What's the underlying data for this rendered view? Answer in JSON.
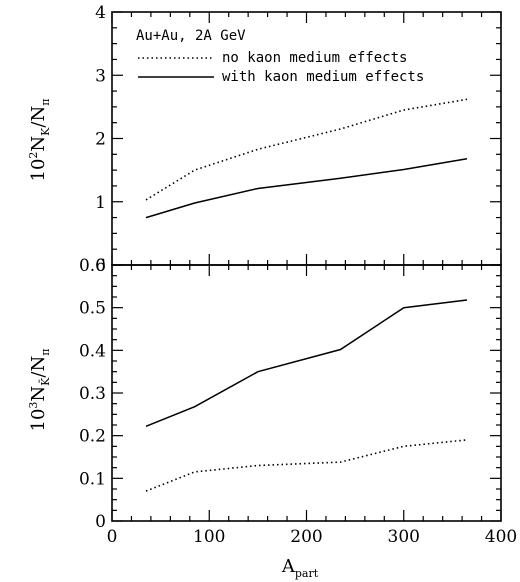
{
  "chart_data": [
    {
      "type": "line",
      "panel": "top",
      "title": "",
      "ylabel": {
        "base": "10",
        "exp": "2",
        "main": "N",
        "num_sub": "K",
        "slash": "/N",
        "den_sub": "π"
      },
      "ylim": [
        0,
        4
      ],
      "y_ticks": [
        0,
        1,
        2,
        3,
        4
      ],
      "y_tick_labels": [
        "0",
        "1",
        "2",
        "3",
        "4"
      ],
      "xlim": [
        0,
        400
      ],
      "grid": false,
      "legend_placement": "top-left",
      "legend_title": "Au+Au, 2A GeV",
      "series": [
        {
          "name": "no kaon medium effects",
          "style": "dotted",
          "x": [
            35,
            85,
            150,
            235,
            300,
            365
          ],
          "y": [
            1.03,
            1.5,
            1.83,
            2.15,
            2.45,
            2.62
          ]
        },
        {
          "name": "with kaon medium effects",
          "style": "solid",
          "x": [
            35,
            85,
            150,
            235,
            300,
            365
          ],
          "y": [
            0.75,
            0.98,
            1.21,
            1.37,
            1.51,
            1.68
          ]
        }
      ]
    },
    {
      "type": "line",
      "panel": "bottom",
      "title": "",
      "ylabel": {
        "base": "10",
        "exp": "3",
        "main": "N",
        "num_sub": "K̄",
        "slash": "/N",
        "den_sub": "π"
      },
      "xlabel": {
        "main": "A",
        "sub": "part"
      },
      "ylim": [
        0,
        0.6
      ],
      "y_ticks": [
        0,
        0.1,
        0.2,
        0.3,
        0.4,
        0.5,
        0.6
      ],
      "y_tick_labels": [
        "0",
        "0.1",
        "0.2",
        "0.3",
        "0.4",
        "0.5",
        "0.6"
      ],
      "xlim": [
        0,
        400
      ],
      "x_ticks": [
        0,
        100,
        200,
        300,
        400
      ],
      "x_tick_labels": [
        "0",
        "100",
        "200",
        "300",
        "400"
      ],
      "grid": false,
      "series": [
        {
          "style": "solid",
          "x": [
            35,
            85,
            150,
            235,
            300,
            365
          ],
          "y": [
            0.222,
            0.268,
            0.35,
            0.402,
            0.5,
            0.518
          ]
        },
        {
          "style": "dotted",
          "x": [
            35,
            85,
            150,
            235,
            300,
            365
          ],
          "y": [
            0.07,
            0.115,
            0.13,
            0.138,
            0.175,
            0.19
          ]
        }
      ]
    }
  ]
}
